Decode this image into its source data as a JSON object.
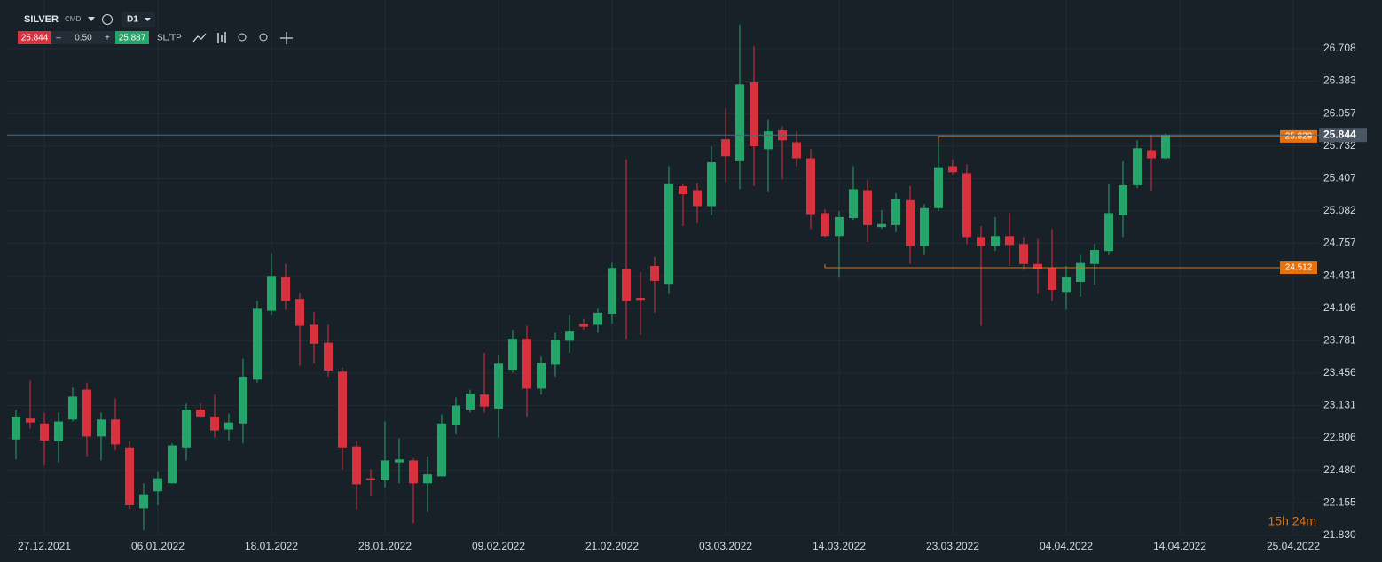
{
  "toolbar": {
    "symbol": "SILVER",
    "market": "CMD",
    "timeframe": "D1",
    "bid": "25.844",
    "minus": "–",
    "volume": "0.50",
    "plus": "+",
    "ask": "25.887",
    "sltp": "SL/TP"
  },
  "chart_data": {
    "type": "candlestick",
    "categories": [
      null,
      null,
      "27.12.2021",
      null,
      null,
      null,
      null,
      null,
      null,
      null,
      "06.01.2022",
      null,
      null,
      null,
      null,
      null,
      null,
      null,
      "18.01.2022",
      null,
      null,
      null,
      null,
      null,
      null,
      null,
      "28.01.2022",
      null,
      null,
      null,
      null,
      null,
      null,
      null,
      "09.02.2022",
      null,
      null,
      null,
      null,
      null,
      null,
      null,
      "21.02.2022",
      null,
      null,
      null,
      null,
      null,
      null,
      null,
      "03.03.2022",
      null,
      null,
      null,
      null,
      null,
      null,
      null,
      "14.03.2022",
      null,
      null,
      null,
      null,
      null,
      null,
      null,
      "23.03.2022",
      null,
      null,
      null,
      null,
      null,
      null,
      null,
      "04.04.2022",
      null,
      null,
      null,
      null,
      null,
      null,
      null,
      "14.04.2022",
      null,
      null,
      null,
      null,
      null,
      null,
      null,
      "25.04.2022"
    ],
    "open": [
      22.79,
      23.0,
      22.95,
      22.77,
      22.99,
      23.29,
      22.82,
      22.99,
      22.71,
      22.1,
      22.27,
      22.35,
      22.71,
      23.09,
      23.02,
      22.89,
      22.95,
      23.39,
      24.08,
      24.42,
      24.2,
      23.94,
      23.76,
      23.47,
      22.72,
      22.4,
      22.38,
      22.56,
      22.58,
      22.35,
      22.42,
      22.93,
      23.09,
      23.24,
      23.1,
      23.49,
      23.8,
      23.3,
      23.54,
      23.78,
      23.95,
      23.94,
      24.05,
      24.5,
      24.21,
      24.53,
      24.35,
      25.33,
      25.29,
      25.13,
      25.8,
      25.58,
      26.37,
      25.7,
      25.89,
      25.77,
      25.61,
      25.06,
      24.83,
      25.01,
      25.29,
      24.92,
      24.94,
      25.19,
      24.73,
      25.11,
      25.53,
      25.46,
      24.82,
      24.73,
      24.83,
      24.75,
      24.55,
      24.51,
      24.27,
      24.37,
      24.55,
      24.68,
      25.04,
      25.34,
      25.69,
      25.61,
      null,
      null,
      null,
      null,
      null,
      null,
      null,
      null,
      null
    ],
    "high": [
      23.09,
      23.38,
      23.06,
      23.06,
      23.31,
      23.36,
      23.06,
      23.2,
      22.77,
      22.35,
      22.47,
      22.75,
      23.15,
      23.15,
      23.24,
      23.05,
      23.6,
      24.18,
      24.66,
      24.55,
      24.26,
      24.07,
      23.94,
      23.51,
      22.77,
      22.49,
      22.97,
      22.8,
      22.6,
      22.62,
      23.04,
      23.21,
      23.29,
      23.66,
      23.64,
      23.89,
      23.93,
      23.62,
      23.86,
      24.04,
      24.0,
      24.1,
      24.56,
      25.6,
      24.47,
      24.62,
      25.53,
      25.35,
      25.36,
      25.73,
      26.11,
      26.95,
      26.73,
      26.0,
      25.93,
      25.88,
      25.7,
      25.1,
      25.08,
      25.53,
      25.39,
      25.09,
      25.26,
      25.33,
      25.15,
      25.82,
      25.6,
      25.55,
      24.93,
      25.02,
      25.06,
      24.82,
      24.8,
      24.9,
      24.53,
      24.64,
      24.75,
      25.35,
      25.58,
      25.79,
      25.84,
      25.86,
      null,
      null,
      null,
      null,
      null,
      null,
      null,
      null,
      null
    ],
    "low": [
      22.59,
      22.9,
      22.53,
      22.56,
      22.97,
      22.62,
      22.58,
      22.68,
      22.09,
      21.88,
      22.13,
      22.35,
      22.58,
      23.0,
      22.81,
      22.78,
      22.75,
      23.36,
      24.04,
      24.09,
      23.53,
      23.55,
      23.42,
      22.49,
      22.09,
      22.22,
      22.31,
      22.35,
      21.95,
      22.06,
      22.42,
      22.84,
      23.06,
      23.06,
      22.81,
      23.46,
      23.02,
      23.24,
      23.42,
      23.66,
      23.89,
      23.86,
      23.95,
      23.8,
      23.84,
      24.06,
      24.25,
      24.93,
      24.96,
      25.04,
      25.37,
      25.3,
      25.33,
      25.27,
      25.4,
      25.53,
      24.9,
      24.82,
      24.42,
      24.99,
      24.77,
      24.9,
      24.87,
      24.55,
      24.64,
      25.08,
      25.45,
      24.75,
      23.93,
      24.68,
      24.53,
      24.49,
      24.25,
      24.18,
      24.09,
      24.22,
      24.34,
      24.64,
      24.82,
      25.31,
      25.28,
      25.6,
      null,
      null,
      null,
      null,
      null,
      null,
      null,
      null,
      null
    ],
    "close": [
      23.02,
      22.96,
      22.78,
      22.97,
      23.22,
      22.82,
      22.99,
      22.74,
      22.13,
      22.24,
      22.4,
      22.73,
      23.09,
      23.02,
      22.88,
      22.96,
      23.42,
      24.1,
      24.43,
      24.18,
      23.93,
      23.75,
      23.48,
      22.71,
      22.34,
      22.38,
      22.58,
      22.59,
      22.35,
      22.44,
      22.95,
      23.13,
      23.25,
      23.12,
      23.55,
      23.8,
      23.3,
      23.56,
      23.79,
      23.88,
      23.92,
      24.06,
      24.51,
      24.18,
      24.19,
      24.38,
      25.35,
      25.25,
      25.13,
      25.57,
      25.63,
      26.35,
      25.73,
      25.88,
      25.79,
      25.61,
      25.05,
      24.83,
      25.02,
      25.3,
      24.94,
      24.95,
      25.2,
      24.73,
      25.11,
      25.52,
      25.47,
      24.82,
      24.73,
      24.83,
      24.74,
      24.55,
      24.5,
      24.29,
      24.42,
      24.56,
      24.69,
      25.06,
      25.34,
      25.71,
      25.61,
      25.844,
      null,
      null,
      null,
      null,
      null,
      null,
      null,
      null,
      null
    ],
    "up_color": "#25a56a",
    "down_color": "#d8323f",
    "ylim": [
      21.828,
      27.197
    ],
    "yticks": [
      26.708,
      26.383,
      26.057,
      25.732,
      25.407,
      25.082,
      24.757,
      24.431,
      24.106,
      23.781,
      23.456,
      23.131,
      22.806,
      {
        "value": 22.48,
        "label": "22.480"
      },
      22.155,
      {
        "value": 21.83,
        "label": "21.830"
      }
    ],
    "grid": true,
    "last_price": 25.844,
    "levels": [
      {
        "value": 25.829,
        "color": "#e8710a"
      },
      {
        "value": 24.512,
        "color": "#e8710a"
      }
    ],
    "countdown": "15h 24m"
  }
}
